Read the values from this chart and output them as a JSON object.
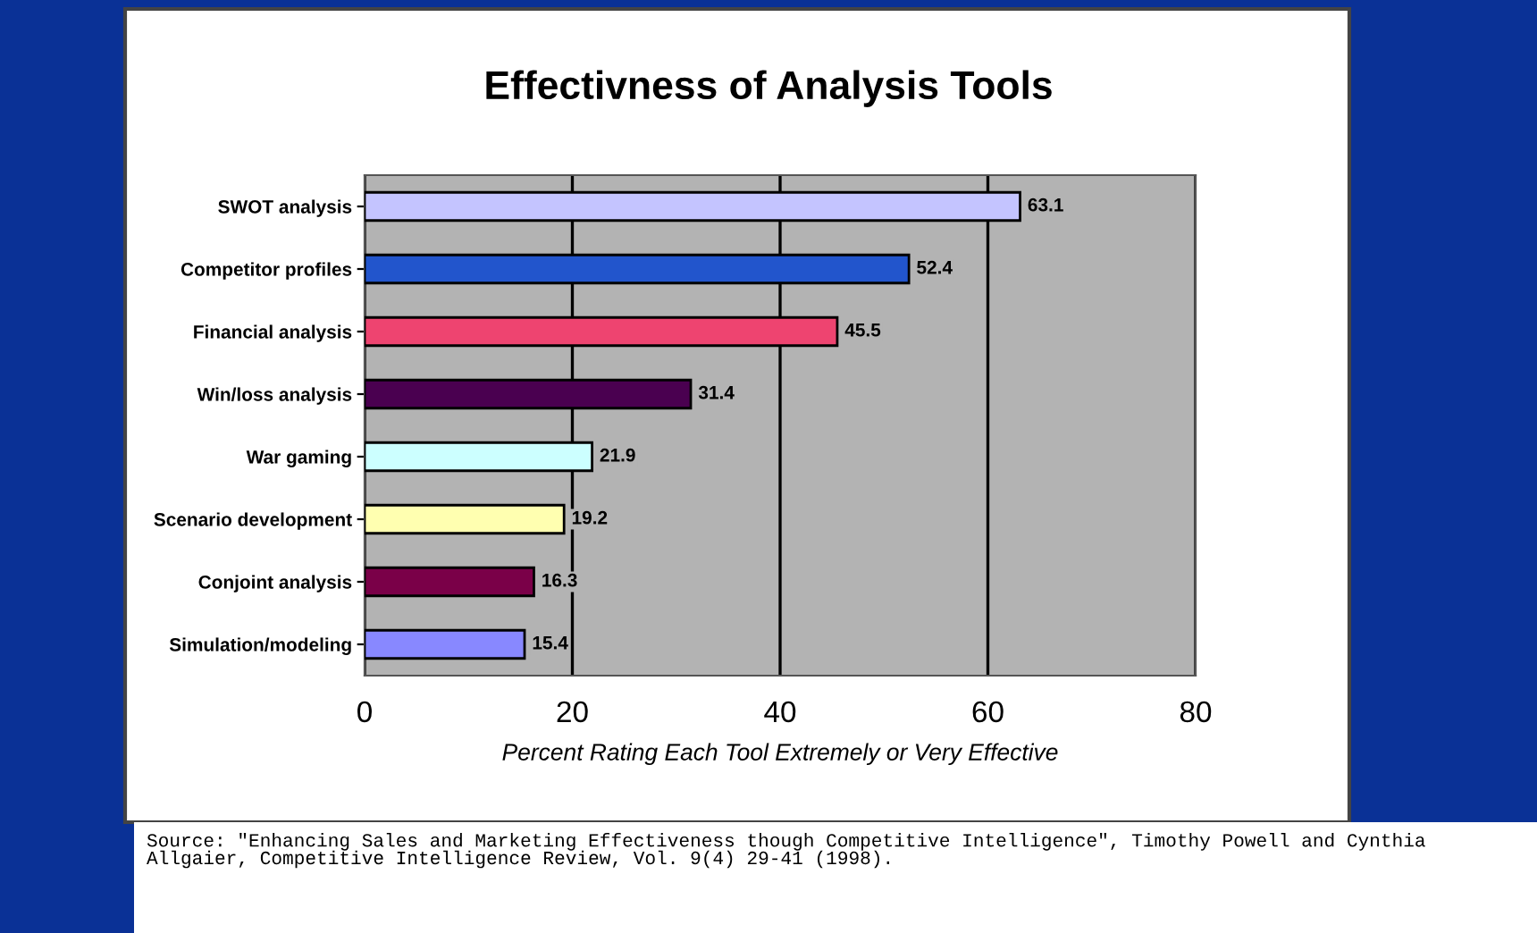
{
  "chart_data": {
    "type": "bar",
    "orientation": "horizontal",
    "title": "Effectivness of Analysis Tools",
    "xlabel": "Percent Rating Each Tool Extremely or Very Effective",
    "categories": [
      "SWOT analysis",
      "Competitor profiles",
      "Financial analysis",
      "Win/loss analysis",
      "War gaming",
      "Scenario development",
      "Conjoint analysis",
      "Simulation/modeling"
    ],
    "values": [
      63.1,
      52.4,
      45.5,
      31.4,
      21.9,
      19.2,
      16.3,
      15.4
    ],
    "colors": [
      "#c4c4ff",
      "#2255cc",
      "#ee4470",
      "#4a0050",
      "#ccffff",
      "#ffffb0",
      "#7a0048",
      "#8888ff"
    ],
    "data_labels": true,
    "xlim": [
      0,
      80
    ],
    "xticks": [
      0,
      20,
      40,
      60,
      80
    ],
    "grid": "x",
    "annotations": [
      "Source: \"Enhancing Sales and Marketing Effectiveness though Competitive Intelligence\", Timothy Powell and Cynthia Allgaier, Competitive Intelligence Review, Vol. 9(4) 29-41 (1998)."
    ]
  }
}
